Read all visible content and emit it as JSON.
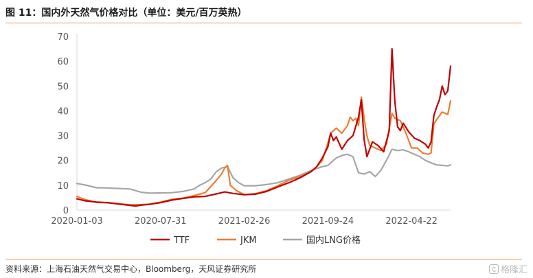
{
  "title": "图 11：国内外天然气价格对比（单位：美元/百万英热）",
  "source": "资料来源：上海石油天然气交易中心，Bloomberg，天风证券研究所",
  "watermark": {
    "text": "格隆汇",
    "icon": "gelonghui-logo-icon"
  },
  "chart_data": {
    "type": "line",
    "title": "图 11：国内外天然气价格对比（单位：美元/百万英热）",
    "xlabel": "",
    "ylabel": "",
    "x_ticks": [
      "2020-01-03",
      "2020-07-31",
      "2021-02-26",
      "2021-09-24",
      "2022-04-22"
    ],
    "x_range": [
      "2020-01-03",
      "2022-07-29"
    ],
    "y_ticks": [
      0,
      10,
      20,
      30,
      40,
      50,
      60,
      70
    ],
    "ylim": [
      0,
      70
    ],
    "grid": false,
    "legend": "bottom",
    "series": [
      {
        "name": "TTF",
        "color": "#c00000",
        "points": [
          [
            "2020-01-03",
            4.5
          ],
          [
            "2020-01-24",
            3.7
          ],
          [
            "2020-02-21",
            3.2
          ],
          [
            "2020-03-20",
            3.0
          ],
          [
            "2020-04-17",
            2.4
          ],
          [
            "2020-05-15",
            1.9
          ],
          [
            "2020-05-29",
            1.6
          ],
          [
            "2020-06-12",
            2.0
          ],
          [
            "2020-07-03",
            2.3
          ],
          [
            "2020-07-31",
            3.0
          ],
          [
            "2020-08-28",
            4.0
          ],
          [
            "2020-09-25",
            4.7
          ],
          [
            "2020-10-23",
            5.3
          ],
          [
            "2020-11-20",
            5.5
          ],
          [
            "2020-12-18",
            6.5
          ],
          [
            "2021-01-08",
            7.3
          ],
          [
            "2021-01-29",
            6.7
          ],
          [
            "2021-02-26",
            6.2
          ],
          [
            "2021-03-26",
            6.4
          ],
          [
            "2021-04-23",
            7.5
          ],
          [
            "2021-05-21",
            9.3
          ],
          [
            "2021-06-18",
            11.0
          ],
          [
            "2021-07-16",
            13.0
          ],
          [
            "2021-08-13",
            15.5
          ],
          [
            "2021-08-27",
            17.5
          ],
          [
            "2021-09-10",
            21.0
          ],
          [
            "2021-09-24",
            25.5
          ],
          [
            "2021-10-01",
            31.0
          ],
          [
            "2021-10-08",
            28.0
          ],
          [
            "2021-10-15",
            29.5
          ],
          [
            "2021-10-29",
            24.5
          ],
          [
            "2021-11-12",
            28.0
          ],
          [
            "2021-11-26",
            30.0
          ],
          [
            "2021-12-10",
            37.5
          ],
          [
            "2021-12-17",
            44.5
          ],
          [
            "2021-12-24",
            28.5
          ],
          [
            "2021-12-31",
            21.5
          ],
          [
            "2022-01-14",
            27.5
          ],
          [
            "2022-01-28",
            26.0
          ],
          [
            "2022-02-11",
            23.5
          ],
          [
            "2022-02-25",
            32.0
          ],
          [
            "2022-03-04",
            65.0
          ],
          [
            "2022-03-11",
            44.0
          ],
          [
            "2022-03-18",
            33.5
          ],
          [
            "2022-03-25",
            32.0
          ],
          [
            "2022-04-01",
            35.0
          ],
          [
            "2022-04-15",
            31.5
          ],
          [
            "2022-04-29",
            29.0
          ],
          [
            "2022-05-13",
            28.0
          ],
          [
            "2022-05-27",
            26.5
          ],
          [
            "2022-06-03",
            25.0
          ],
          [
            "2022-06-10",
            27.5
          ],
          [
            "2022-06-17",
            38.0
          ],
          [
            "2022-06-24",
            41.5
          ],
          [
            "2022-07-01",
            44.5
          ],
          [
            "2022-07-08",
            50.0
          ],
          [
            "2022-07-15",
            46.5
          ],
          [
            "2022-07-22",
            48.0
          ],
          [
            "2022-07-29",
            58.0
          ]
        ]
      },
      {
        "name": "JKM",
        "color": "#ed7d31",
        "points": [
          [
            "2020-01-03",
            5.5
          ],
          [
            "2020-01-24",
            4.2
          ],
          [
            "2020-02-21",
            3.1
          ],
          [
            "2020-03-20",
            2.9
          ],
          [
            "2020-04-17",
            2.6
          ],
          [
            "2020-05-15",
            2.1
          ],
          [
            "2020-06-12",
            2.2
          ],
          [
            "2020-07-03",
            2.4
          ],
          [
            "2020-07-31",
            3.2
          ],
          [
            "2020-08-28",
            4.3
          ],
          [
            "2020-09-25",
            4.8
          ],
          [
            "2020-10-23",
            5.8
          ],
          [
            "2020-11-20",
            7.0
          ],
          [
            "2020-12-04",
            9.5
          ],
          [
            "2020-12-18",
            12.0
          ],
          [
            "2020-12-31",
            14.5
          ],
          [
            "2021-01-08",
            17.0
          ],
          [
            "2021-01-15",
            18.0
          ],
          [
            "2021-01-22",
            10.0
          ],
          [
            "2021-02-05",
            8.0
          ],
          [
            "2021-02-26",
            6.2
          ],
          [
            "2021-03-26",
            6.6
          ],
          [
            "2021-04-23",
            7.8
          ],
          [
            "2021-05-21",
            9.8
          ],
          [
            "2021-06-18",
            12.0
          ],
          [
            "2021-07-16",
            13.5
          ],
          [
            "2021-08-13",
            15.5
          ],
          [
            "2021-08-27",
            17.5
          ],
          [
            "2021-09-10",
            20.0
          ],
          [
            "2021-09-24",
            27.0
          ],
          [
            "2021-10-01",
            31.0
          ],
          [
            "2021-10-15",
            33.0
          ],
          [
            "2021-10-29",
            31.0
          ],
          [
            "2021-11-12",
            34.0
          ],
          [
            "2021-11-19",
            37.5
          ],
          [
            "2021-11-26",
            36.0
          ],
          [
            "2021-12-03",
            37.0
          ],
          [
            "2021-12-10",
            34.0
          ],
          [
            "2021-12-17",
            45.5
          ],
          [
            "2021-12-24",
            37.0
          ],
          [
            "2021-12-31",
            30.0
          ],
          [
            "2022-01-07",
            26.0
          ],
          [
            "2022-01-21",
            25.0
          ],
          [
            "2022-02-04",
            24.0
          ],
          [
            "2022-02-18",
            26.5
          ],
          [
            "2022-03-04",
            39.0
          ],
          [
            "2022-03-11",
            37.0
          ],
          [
            "2022-03-25",
            36.0
          ],
          [
            "2022-04-08",
            31.0
          ],
          [
            "2022-04-22",
            25.0
          ],
          [
            "2022-05-06",
            25.0
          ],
          [
            "2022-05-20",
            23.0
          ],
          [
            "2022-06-03",
            22.5
          ],
          [
            "2022-06-10",
            23.0
          ],
          [
            "2022-06-17",
            34.5
          ],
          [
            "2022-06-24",
            36.5
          ],
          [
            "2022-07-08",
            39.5
          ],
          [
            "2022-07-22",
            38.5
          ],
          [
            "2022-07-29",
            44.0
          ]
        ]
      },
      {
        "name": "国内LNG价格",
        "color": "#a6a6a6",
        "points": [
          [
            "2020-01-03",
            10.7
          ],
          [
            "2020-01-24",
            10.1
          ],
          [
            "2020-02-21",
            9.0
          ],
          [
            "2020-03-20",
            8.9
          ],
          [
            "2020-04-17",
            8.7
          ],
          [
            "2020-05-15",
            8.5
          ],
          [
            "2020-06-12",
            7.2
          ],
          [
            "2020-07-03",
            6.8
          ],
          [
            "2020-07-31",
            6.9
          ],
          [
            "2020-08-28",
            7.0
          ],
          [
            "2020-09-25",
            7.5
          ],
          [
            "2020-10-23",
            8.5
          ],
          [
            "2020-11-06",
            10.0
          ],
          [
            "2020-11-20",
            11.0
          ],
          [
            "2020-12-04",
            12.5
          ],
          [
            "2020-12-18",
            15.5
          ],
          [
            "2021-01-01",
            17.0
          ],
          [
            "2021-01-15",
            17.5
          ],
          [
            "2021-01-29",
            13.0
          ],
          [
            "2021-02-12",
            11.0
          ],
          [
            "2021-02-26",
            9.8
          ],
          [
            "2021-03-26",
            9.8
          ],
          [
            "2021-04-23",
            10.3
          ],
          [
            "2021-05-21",
            11.0
          ],
          [
            "2021-06-18",
            12.5
          ],
          [
            "2021-07-16",
            14.0
          ],
          [
            "2021-08-13",
            16.0
          ],
          [
            "2021-09-10",
            17.5
          ],
          [
            "2021-09-24",
            18.0
          ],
          [
            "2021-10-15",
            21.0
          ],
          [
            "2021-10-29",
            22.0
          ],
          [
            "2021-11-12",
            22.5
          ],
          [
            "2021-11-26",
            21.5
          ],
          [
            "2021-12-10",
            15.0
          ],
          [
            "2021-12-24",
            14.5
          ],
          [
            "2022-01-07",
            15.5
          ],
          [
            "2022-01-21",
            13.5
          ],
          [
            "2022-02-04",
            16.0
          ],
          [
            "2022-02-18",
            20.0
          ],
          [
            "2022-03-04",
            24.5
          ],
          [
            "2022-03-18",
            24.0
          ],
          [
            "2022-04-01",
            24.3
          ],
          [
            "2022-04-15",
            23.5
          ],
          [
            "2022-04-29",
            22.5
          ],
          [
            "2022-05-13",
            21.5
          ],
          [
            "2022-05-27",
            20.0
          ],
          [
            "2022-06-10",
            19.0
          ],
          [
            "2022-06-24",
            18.2
          ],
          [
            "2022-07-08",
            18.0
          ],
          [
            "2022-07-22",
            17.8
          ],
          [
            "2022-07-29",
            18.2
          ]
        ]
      }
    ]
  }
}
